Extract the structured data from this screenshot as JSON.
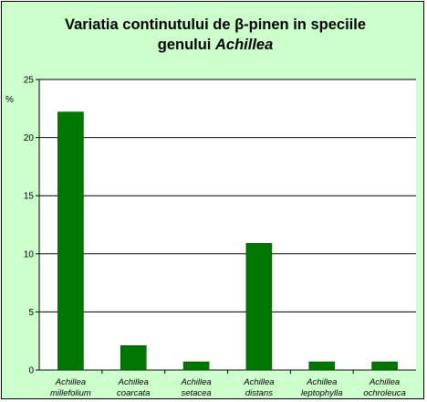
{
  "chart_data": {
    "type": "bar",
    "title_line1": "Variatia continutului de β-pinen in speciile",
    "title_line2_prefix": "genului ",
    "title_line2_italic": "Achillea",
    "ylabel": "%",
    "ylim": [
      0,
      25
    ],
    "yticks": [
      0,
      5,
      10,
      15,
      20,
      25
    ],
    "grid": true,
    "categories": [
      [
        "Achillea",
        "millefolium"
      ],
      [
        "Achillea",
        "coarcata"
      ],
      [
        "Achillea",
        "setacea"
      ],
      [
        "Achillea",
        "distans"
      ],
      [
        "Achillea",
        "leptophylla"
      ],
      [
        "Achillea",
        "ochroleuca"
      ]
    ],
    "series": [
      {
        "values": [
          22.2,
          2.1,
          0.7,
          10.9,
          0.7,
          0.7
        ]
      }
    ]
  },
  "colors": {
    "background": "#ccffcc",
    "plot_area": "#ffffff",
    "bar": "#007700",
    "bar_edge": "#004400",
    "grid": "#000000"
  }
}
